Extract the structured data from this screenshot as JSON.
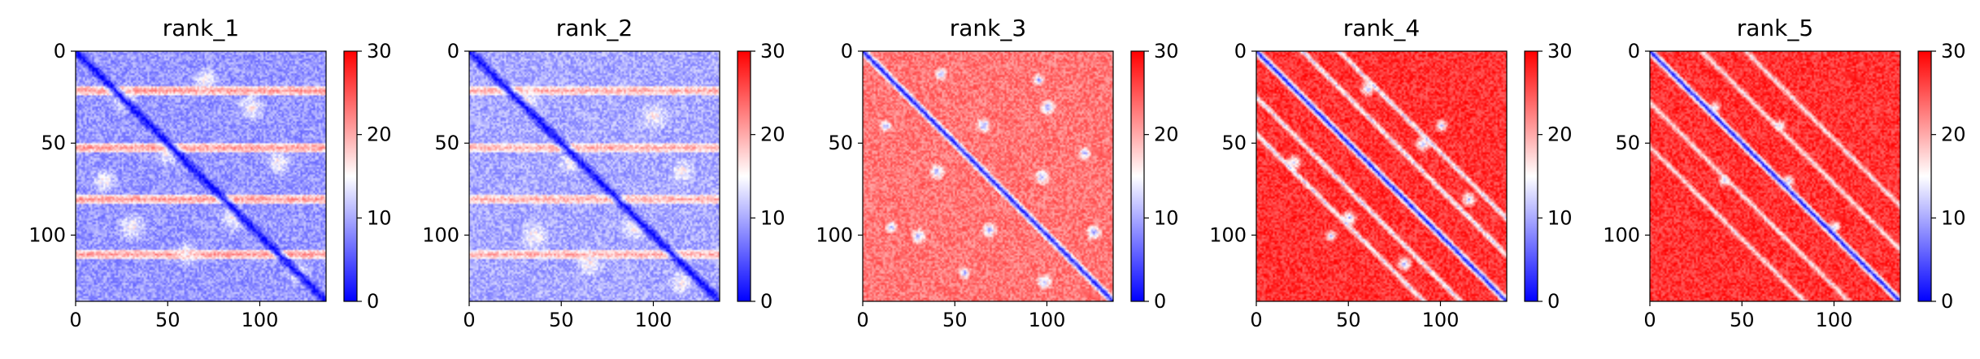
{
  "chart_data": [
    {
      "type": "heatmap",
      "title": "rank_1",
      "xlim": [
        0,
        136
      ],
      "ylim": [
        136,
        0
      ],
      "xticks": [
        0,
        50,
        100
      ],
      "yticks": [
        0,
        50,
        100
      ],
      "colorbar": {
        "min": 0,
        "max": 30,
        "ticks": [
          0,
          10,
          20,
          30
        ],
        "colormap": "bwr"
      },
      "pattern": {
        "background": 9,
        "diag_low": 0,
        "diag_width": 5,
        "stripes": [
          21,
          52,
          80,
          110
        ],
        "stripe_value": 21,
        "blobs": [
          [
            25,
            25,
            9
          ],
          [
            55,
            50,
            8
          ],
          [
            90,
            85,
            9
          ],
          [
            120,
            120,
            8
          ],
          [
            30,
            95,
            9
          ],
          [
            95,
            30,
            9
          ],
          [
            60,
            110,
            8
          ],
          [
            110,
            60,
            8
          ],
          [
            15,
            70,
            8
          ],
          [
            70,
            15,
            8
          ]
        ],
        "blob_value": 16,
        "secondary_offsets": [],
        "secondary_value": 0,
        "noise": 3
      }
    },
    {
      "type": "heatmap",
      "title": "rank_2",
      "xlim": [
        0,
        136
      ],
      "ylim": [
        136,
        0
      ],
      "xticks": [
        0,
        50,
        100
      ],
      "yticks": [
        0,
        50,
        100
      ],
      "colorbar": {
        "min": 0,
        "max": 30,
        "ticks": [
          0,
          10,
          20,
          30
        ],
        "colormap": "bwr"
      },
      "pattern": {
        "background": 10,
        "diag_low": 0,
        "diag_width": 5,
        "stripes": [
          21,
          52,
          80,
          110
        ],
        "stripe_value": 20,
        "blobs": [
          [
            25,
            30,
            9
          ],
          [
            60,
            55,
            8
          ],
          [
            95,
            90,
            9
          ],
          [
            125,
            115,
            8
          ],
          [
            35,
            100,
            9
          ],
          [
            100,
            35,
            9
          ],
          [
            65,
            115,
            8
          ],
          [
            115,
            65,
            8
          ]
        ],
        "blob_value": 16,
        "secondary_offsets": [],
        "secondary_value": 0,
        "noise": 3
      }
    },
    {
      "type": "heatmap",
      "title": "rank_3",
      "xlim": [
        0,
        136
      ],
      "ylim": [
        136,
        0
      ],
      "xticks": [
        0,
        50,
        100
      ],
      "yticks": [
        0,
        50,
        100
      ],
      "colorbar": {
        "min": 0,
        "max": 30,
        "ticks": [
          0,
          10,
          20,
          30
        ],
        "colormap": "bwr"
      },
      "pattern": {
        "background": 23,
        "diag_low": 1,
        "diag_width": 4,
        "stripes": [],
        "stripe_value": 0,
        "blobs": [
          [
            12,
            42,
            4
          ],
          [
            40,
            12,
            4
          ],
          [
            40,
            65,
            5
          ],
          [
            65,
            40,
            5
          ],
          [
            68,
            97,
            5
          ],
          [
            97,
            68,
            5
          ],
          [
            98,
            125,
            5
          ],
          [
            125,
            98,
            5
          ],
          [
            30,
            100,
            5
          ],
          [
            100,
            30,
            5
          ],
          [
            55,
            120,
            4
          ],
          [
            120,
            55,
            4
          ],
          [
            15,
            95,
            4
          ],
          [
            95,
            15,
            4
          ]
        ],
        "blob_value": 9,
        "secondary_offsets": [],
        "secondary_value": 0,
        "noise": 3
      }
    },
    {
      "type": "heatmap",
      "title": "rank_4",
      "xlim": [
        0,
        136
      ],
      "ylim": [
        136,
        0
      ],
      "xticks": [
        0,
        50,
        100
      ],
      "yticks": [
        0,
        50,
        100
      ],
      "colorbar": {
        "min": 0,
        "max": 30,
        "ticks": [
          0,
          10,
          20,
          30
        ],
        "colormap": "bwr"
      },
      "pattern": {
        "background": 27,
        "diag_low": 1,
        "diag_width": 4,
        "stripes": [],
        "stripe_value": 0,
        "blobs": [
          [
            20,
            60,
            5
          ],
          [
            60,
            20,
            5
          ],
          [
            50,
            90,
            5
          ],
          [
            90,
            50,
            5
          ],
          [
            80,
            115,
            5
          ],
          [
            115,
            80,
            5
          ],
          [
            40,
            100,
            4
          ],
          [
            100,
            40,
            4
          ]
        ],
        "blob_value": 10,
        "secondary_offsets": [
          -25,
          25,
          -45,
          45
        ],
        "secondary_value": 10,
        "noise": 3
      }
    },
    {
      "type": "heatmap",
      "title": "rank_5",
      "xlim": [
        0,
        136
      ],
      "ylim": [
        136,
        0
      ],
      "xticks": [
        0,
        50,
        100
      ],
      "yticks": [
        0,
        50,
        100
      ],
      "colorbar": {
        "min": 0,
        "max": 30,
        "ticks": [
          0,
          10,
          20,
          30
        ],
        "colormap": "bwr"
      },
      "pattern": {
        "background": 27,
        "diag_low": 1,
        "diag_width": 4,
        "stripes": [],
        "stripe_value": 0,
        "blobs": [
          [
            30,
            35,
            4
          ],
          [
            70,
            75,
            4
          ],
          [
            40,
            70,
            4
          ],
          [
            70,
            40,
            4
          ],
          [
            95,
            100,
            4
          ]
        ],
        "blob_value": 12,
        "secondary_offsets": [
          -28,
          28,
          -52,
          52
        ],
        "secondary_value": 13,
        "noise": 3
      }
    }
  ]
}
